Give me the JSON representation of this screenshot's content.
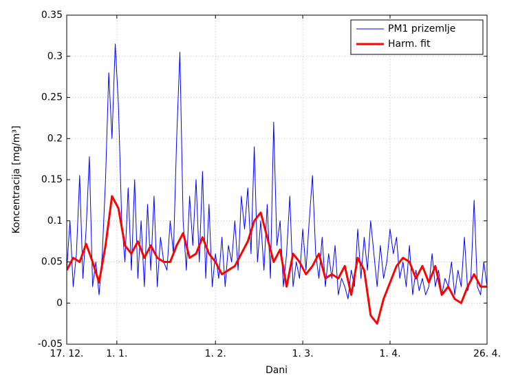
{
  "chart_data": {
    "type": "line",
    "xlabel": "Dani",
    "ylabel": "Koncentracija [mg/m³]",
    "xlim": [
      0,
      130
    ],
    "xticks": [
      {
        "value": 0,
        "label": "17. 12."
      },
      {
        "value": 15.5,
        "label": "1. 1."
      },
      {
        "value": 46,
        "label": "1. 2."
      },
      {
        "value": 73,
        "label": "1. 3."
      },
      {
        "value": 100,
        "label": "1. 4."
      },
      {
        "value": 130,
        "label": "26. 4."
      }
    ],
    "ylim": [
      -0.05,
      0.35
    ],
    "yticks": [
      -0.05,
      0,
      0.05,
      0.1,
      0.15,
      0.2,
      0.25,
      0.3,
      0.35
    ],
    "grid": true,
    "legend": "upper right",
    "series": [
      {
        "name": "PM1 prizemlje",
        "color": "#0000ff",
        "width": 1,
        "x": [
          0,
          1,
          2,
          3,
          4,
          5,
          6,
          7,
          8,
          9,
          10,
          11,
          12,
          13,
          14,
          15,
          16,
          17,
          18,
          19,
          20,
          21,
          22,
          23,
          24,
          25,
          26,
          27,
          28,
          29,
          30,
          31,
          32,
          33,
          34,
          35,
          36,
          37,
          38,
          39,
          40,
          41,
          42,
          43,
          44,
          45,
          46,
          47,
          48,
          49,
          50,
          51,
          52,
          53,
          54,
          55,
          56,
          57,
          58,
          59,
          60,
          61,
          62,
          63,
          64,
          65,
          66,
          67,
          68,
          69,
          70,
          71,
          72,
          73,
          74,
          75,
          76,
          77,
          78,
          79,
          80,
          81,
          82,
          83,
          84,
          85,
          86,
          87,
          88,
          89,
          90,
          91,
          92,
          93,
          94,
          95,
          96,
          97,
          98,
          99,
          100,
          101,
          102,
          103,
          104,
          105,
          106,
          107,
          108,
          109,
          110,
          111,
          112,
          113,
          114,
          115,
          116,
          117,
          118,
          119,
          120,
          121,
          122,
          123,
          124,
          125,
          126,
          127,
          128,
          129,
          130
        ],
        "values": [
          0.04,
          0.1,
          0.02,
          0.06,
          0.155,
          0.03,
          0.09,
          0.178,
          0.02,
          0.05,
          0.01,
          0.06,
          0.15,
          0.28,
          0.2,
          0.315,
          0.24,
          0.1,
          0.05,
          0.14,
          0.04,
          0.15,
          0.03,
          0.1,
          0.02,
          0.12,
          0.04,
          0.13,
          0.02,
          0.08,
          0.05,
          0.04,
          0.1,
          0.06,
          0.2,
          0.305,
          0.1,
          0.04,
          0.13,
          0.07,
          0.15,
          0.05,
          0.16,
          0.03,
          0.12,
          0.02,
          0.06,
          0.03,
          0.08,
          0.02,
          0.07,
          0.05,
          0.1,
          0.04,
          0.13,
          0.09,
          0.14,
          0.06,
          0.19,
          0.05,
          0.1,
          0.04,
          0.12,
          0.03,
          0.22,
          0.07,
          0.1,
          0.02,
          0.06,
          0.13,
          0.02,
          0.05,
          0.03,
          0.09,
          0.04,
          0.1,
          0.155,
          0.06,
          0.03,
          0.08,
          0.02,
          0.06,
          0.03,
          0.07,
          0.01,
          0.03,
          0.02,
          0.005,
          0.04,
          0.02,
          0.09,
          0.03,
          0.08,
          0.04,
          0.1,
          0.06,
          0.02,
          0.07,
          0.03,
          0.05,
          0.09,
          0.06,
          0.08,
          0.03,
          0.05,
          0.02,
          0.07,
          0.01,
          0.04,
          0.015,
          0.03,
          0.01,
          0.02,
          0.06,
          0.02,
          0.04,
          0.01,
          0.03,
          0.02,
          0.05,
          0.01,
          0.04,
          0.02,
          0.08,
          0.015,
          0.03,
          0.125,
          0.02,
          0.01,
          0.05,
          0.02
        ]
      },
      {
        "name": "Harm. fit",
        "color": "#ff0000",
        "width": 3,
        "x": [
          0,
          2,
          4,
          6,
          8,
          10,
          12,
          14,
          16,
          18,
          20,
          22,
          24,
          26,
          28,
          30,
          32,
          34,
          36,
          38,
          40,
          42,
          44,
          46,
          48,
          50,
          52,
          54,
          56,
          58,
          60,
          62,
          64,
          66,
          68,
          70,
          72,
          74,
          76,
          78,
          80,
          82,
          84,
          86,
          88,
          90,
          92,
          94,
          96,
          98,
          100,
          102,
          104,
          106,
          108,
          110,
          112,
          114,
          116,
          118,
          120,
          122,
          124,
          126,
          128,
          130
        ],
        "values": [
          0.04,
          0.055,
          0.05,
          0.072,
          0.05,
          0.025,
          0.07,
          0.13,
          0.115,
          0.07,
          0.06,
          0.075,
          0.055,
          0.07,
          0.055,
          0.05,
          0.05,
          0.07,
          0.085,
          0.055,
          0.06,
          0.08,
          0.06,
          0.05,
          0.035,
          0.04,
          0.045,
          0.06,
          0.075,
          0.1,
          0.11,
          0.08,
          0.05,
          0.065,
          0.02,
          0.06,
          0.05,
          0.035,
          0.045,
          0.06,
          0.03,
          0.035,
          0.03,
          0.045,
          0.01,
          0.055,
          0.04,
          -0.015,
          -0.025,
          0.005,
          0.025,
          0.045,
          0.055,
          0.05,
          0.03,
          0.045,
          0.025,
          0.045,
          0.01,
          0.02,
          0.005,
          0.0,
          0.02,
          0.035,
          0.02,
          0.02
        ]
      }
    ]
  }
}
